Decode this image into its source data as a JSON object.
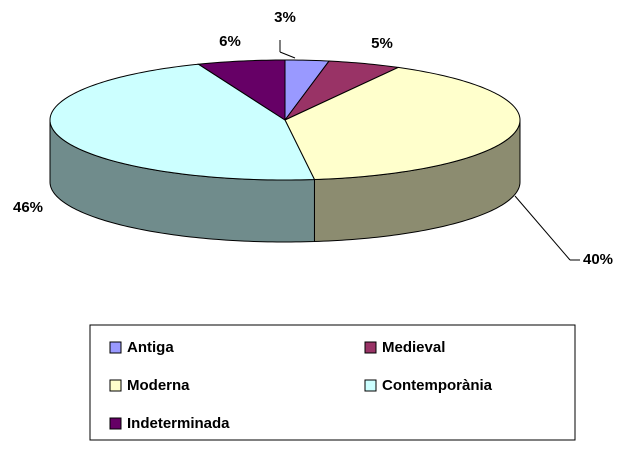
{
  "chart_data": {
    "type": "pie3d",
    "categories": [
      "Antiga",
      "Medieval",
      "Moderna",
      "Contemporània",
      "Indeterminada"
    ],
    "values": [
      3,
      5,
      40,
      46,
      6
    ],
    "value_labels": [
      "3%",
      "5%",
      "40%",
      "46%",
      "6%"
    ],
    "colors": [
      "#9999ff",
      "#993366",
      "#ffffcc",
      "#ccffff",
      "#660066"
    ],
    "legend": "bottom"
  }
}
